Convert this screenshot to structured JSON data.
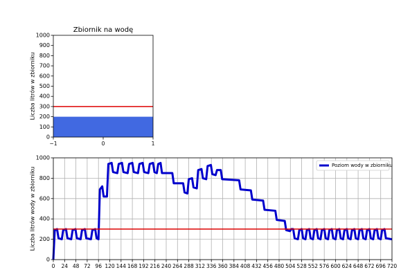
{
  "chart_data": [
    {
      "type": "bar",
      "title": "Zbiornik na wodę",
      "ylabel": "Liczba litrów w zbiorniku",
      "x": [
        0
      ],
      "values": [
        200
      ],
      "color": "#4169e1",
      "threshold": 300,
      "threshold_color": "#dd0000",
      "xlim": [
        -1,
        1
      ],
      "xticks": [
        {
          "value": -1,
          "label": "−1"
        },
        0,
        1
      ],
      "ylim": [
        0,
        1000
      ],
      "yticks": [
        0,
        100,
        200,
        300,
        400,
        500,
        600,
        700,
        800,
        900,
        1000
      ],
      "grid": false
    },
    {
      "type": "line",
      "ylabel": "Liczba litrów wody w zbiorniku",
      "x": [
        0,
        3,
        8,
        11,
        18,
        21,
        27,
        30,
        38,
        41,
        47,
        50,
        58,
        61,
        67,
        70,
        80,
        83,
        89,
        92,
        96,
        99,
        104,
        107,
        114,
        117,
        124,
        127,
        136,
        139,
        146,
        149,
        158,
        161,
        168,
        171,
        180,
        183,
        190,
        193,
        202,
        205,
        212,
        215,
        220,
        223,
        228,
        231,
        253,
        256,
        276,
        279,
        285,
        288,
        295,
        298,
        305,
        308,
        315,
        318,
        325,
        328,
        335,
        338,
        345,
        348,
        356,
        359,
        395,
        398,
        420,
        423,
        446,
        449,
        472,
        475,
        492,
        495,
        503,
        506,
        510,
        513,
        520,
        523,
        528,
        531,
        536,
        539,
        544,
        547,
        552,
        555,
        560,
        563,
        568,
        571,
        576,
        579,
        584,
        587,
        592,
        595,
        600,
        603,
        608,
        611,
        616,
        619,
        624,
        627,
        632,
        635,
        640,
        643,
        648,
        651,
        656,
        659,
        664,
        667,
        672,
        675,
        680,
        683,
        688,
        691,
        696,
        699,
        704,
        707,
        720
      ],
      "series": [
        {
          "name": "Poziom wody w zbiorniku",
          "color": "#0000cc",
          "values": [
            0,
            290,
            300,
            210,
            200,
            290,
            300,
            210,
            200,
            290,
            300,
            210,
            200,
            290,
            300,
            210,
            200,
            290,
            300,
            210,
            200,
            690,
            720,
            620,
            620,
            940,
            950,
            860,
            850,
            940,
            950,
            860,
            850,
            940,
            950,
            860,
            850,
            940,
            950,
            860,
            850,
            940,
            950,
            860,
            850,
            940,
            950,
            850,
            850,
            750,
            750,
            660,
            650,
            790,
            800,
            710,
            700,
            880,
            890,
            800,
            790,
            920,
            930,
            840,
            830,
            880,
            880,
            790,
            780,
            690,
            680,
            590,
            580,
            490,
            480,
            390,
            380,
            290,
            280,
            300,
            300,
            210,
            200,
            290,
            300,
            210,
            200,
            290,
            300,
            210,
            200,
            290,
            300,
            210,
            200,
            290,
            300,
            210,
            200,
            290,
            300,
            210,
            200,
            290,
            300,
            210,
            200,
            290,
            300,
            210,
            200,
            290,
            300,
            210,
            200,
            290,
            300,
            210,
            200,
            290,
            300,
            210,
            200,
            290,
            300,
            210,
            200,
            290,
            300,
            210,
            200
          ]
        }
      ],
      "threshold": 300,
      "threshold_color": "#dd0000",
      "xlim": [
        0,
        720
      ],
      "xticks": [
        0,
        24,
        48,
        72,
        96,
        120,
        144,
        168,
        192,
        216,
        240,
        264,
        288,
        312,
        336,
        360,
        384,
        408,
        432,
        456,
        480,
        504,
        528,
        552,
        576,
        600,
        624,
        648,
        672,
        696,
        720
      ],
      "ylim": [
        0,
        1000
      ],
      "yticks": [
        0,
        200,
        400,
        600,
        800,
        1000
      ],
      "grid": true,
      "legend": "upper right"
    }
  ]
}
